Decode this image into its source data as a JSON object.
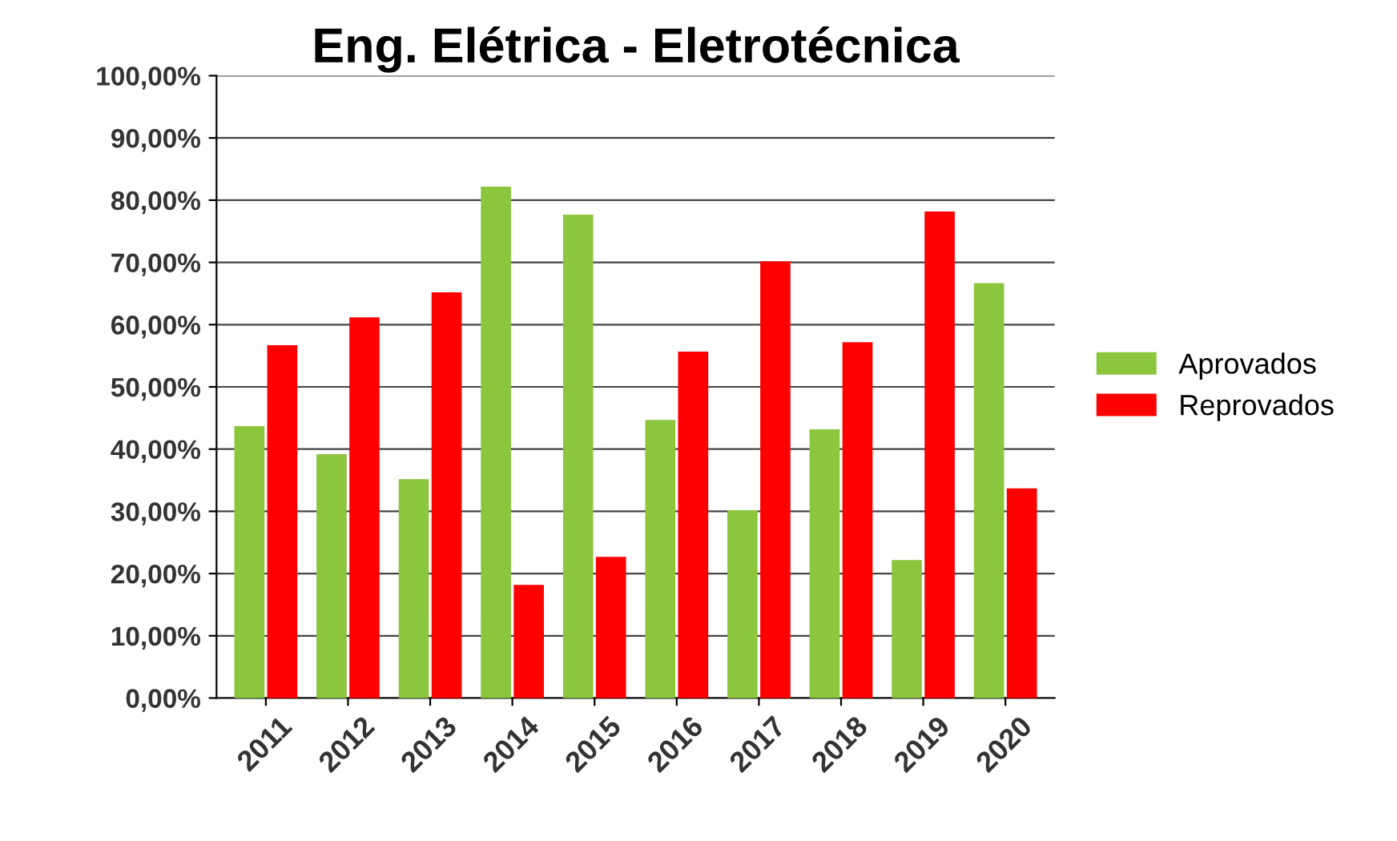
{
  "chart_data": {
    "type": "bar",
    "title": "Eng. Elétrica - Eletrotécnica",
    "categories": [
      "2011",
      "2012",
      "2013",
      "2014",
      "2015",
      "2016",
      "2017",
      "2018",
      "2019",
      "2020"
    ],
    "series": [
      {
        "name": "Aprovados",
        "color": "#8cc63e",
        "values": [
          43.5,
          39,
          35,
          82,
          77.5,
          44.5,
          30,
          43,
          22,
          66.5
        ]
      },
      {
        "name": "Reprovados",
        "color": "#ff0000",
        "values": [
          56.5,
          61,
          65,
          18,
          22.5,
          55.5,
          70,
          57,
          78,
          33.5
        ]
      }
    ],
    "ylim": [
      0,
      100
    ],
    "yticks": [
      {
        "value": 0,
        "label": "0,00%"
      },
      {
        "value": 10,
        "label": "10,00%"
      },
      {
        "value": 20,
        "label": "20,00%"
      },
      {
        "value": 30,
        "label": "30,00%"
      },
      {
        "value": 40,
        "label": "40,00%"
      },
      {
        "value": 50,
        "label": "50,00%"
      },
      {
        "value": 60,
        "label": "60,00%"
      },
      {
        "value": 70,
        "label": "70,00%"
      },
      {
        "value": 80,
        "label": "80,00%"
      },
      {
        "value": 90,
        "label": "90,00%"
      },
      {
        "value": 100,
        "label": "100,00%"
      }
    ],
    "grid": "y",
    "legend": "right"
  }
}
